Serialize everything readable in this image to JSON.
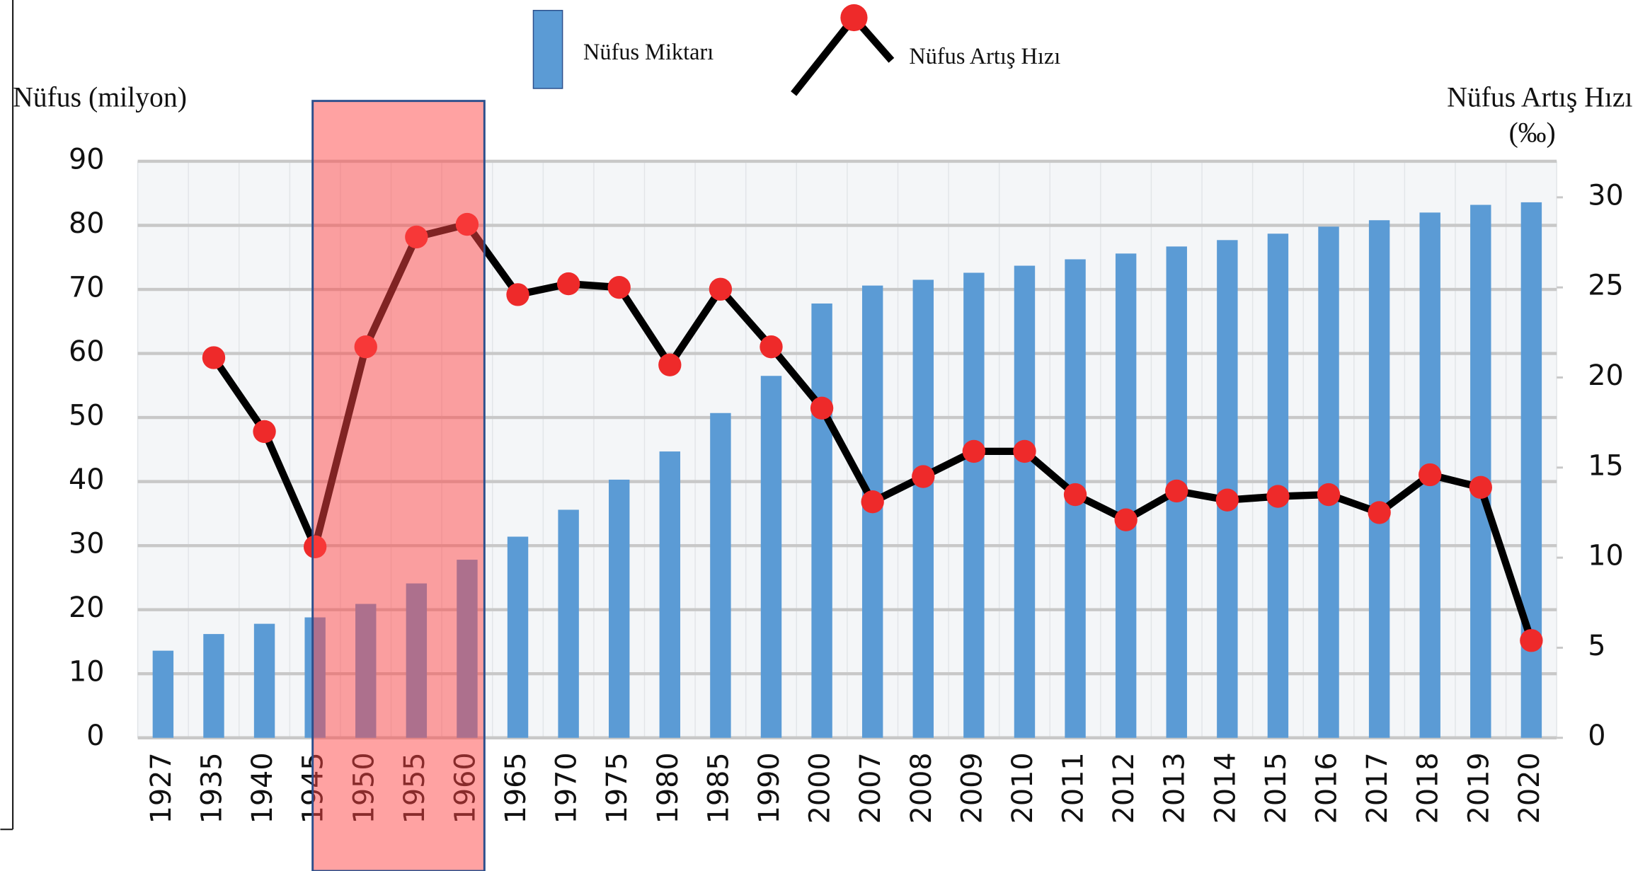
{
  "chart_data": {
    "type": "bar_line",
    "y_label": "Nüfus (milyon)",
    "y2_label": "Nüfus Artış Hızı",
    "y2_unit": "(‰)",
    "categories": [
      "1927",
      "1935",
      "1940",
      "1945",
      "1950",
      "1955",
      "1960",
      "1965",
      "1970",
      "1975",
      "1980",
      "1985",
      "1990",
      "2000",
      "2007",
      "2008",
      "2009",
      "2010",
      "2011",
      "2012",
      "2013",
      "2014",
      "2015",
      "2016",
      "2017",
      "2018",
      "2019",
      "2020"
    ],
    "series": [
      {
        "name": "Nüfus Miktarı",
        "color": "#5b9bd5",
        "kind": "bar",
        "axis": "y",
        "values": [
          13.6,
          16.2,
          17.8,
          18.8,
          20.9,
          24.1,
          27.8,
          31.4,
          35.6,
          40.3,
          44.7,
          50.7,
          56.5,
          67.8,
          70.6,
          71.5,
          72.6,
          73.7,
          74.7,
          75.6,
          76.7,
          77.7,
          78.7,
          79.8,
          80.8,
          82.0,
          83.2,
          83.6
        ]
      },
      {
        "name": "Nüfus Artış Hızı",
        "color": "#000000",
        "marker_color": "#ee2a2a",
        "kind": "line",
        "axis": "y2",
        "values": [
          null,
          21.1,
          17.0,
          10.6,
          21.7,
          27.8,
          28.5,
          24.6,
          25.2,
          25.0,
          20.7,
          24.9,
          21.7,
          18.3,
          13.1,
          14.5,
          15.9,
          15.9,
          13.5,
          12.1,
          13.7,
          13.2,
          13.4,
          13.5,
          12.5,
          14.6,
          13.9,
          5.4
        ]
      }
    ],
    "ylim": [
      0,
      90
    ],
    "yticks": [
      0,
      10,
      20,
      30,
      40,
      50,
      60,
      70,
      80,
      90
    ],
    "y2lim": [
      0,
      32
    ],
    "y2ticks": [
      0,
      5,
      10,
      15,
      20,
      25,
      30
    ],
    "grid": true
  }
}
